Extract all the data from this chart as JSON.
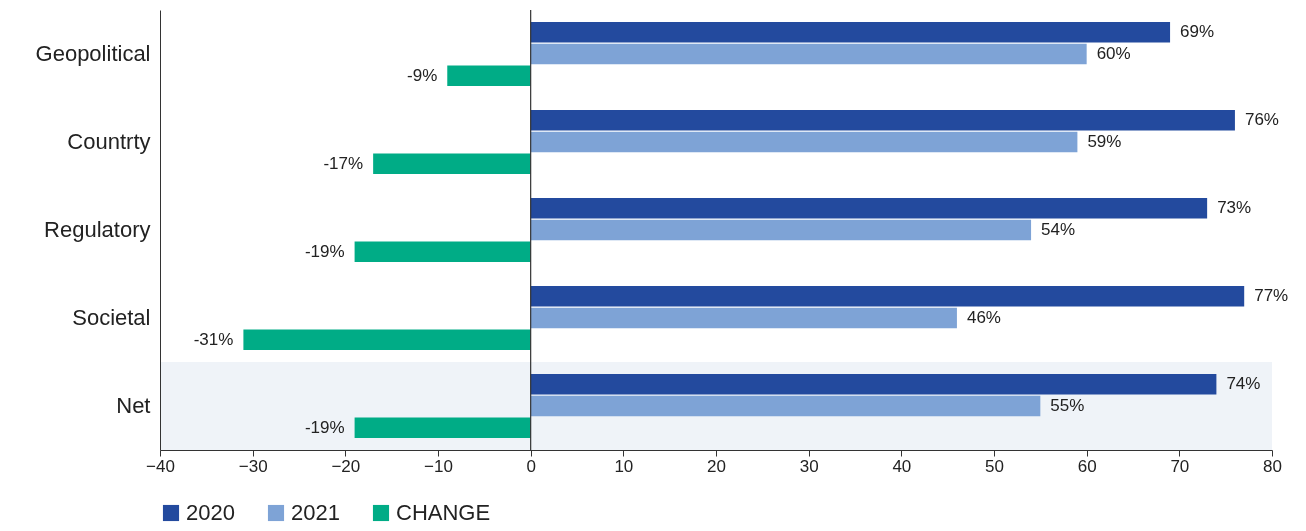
{
  "chart_data": {
    "type": "bar",
    "orientation": "horizontal",
    "categories": [
      "Geopolitical",
      "Countrty",
      "Regulatory",
      "Societal",
      "Net"
    ],
    "series": [
      {
        "name": "2020",
        "color": "#234a9e",
        "values": [
          69,
          76,
          73,
          77,
          74
        ],
        "value_labels": [
          "69%",
          "76%",
          "73%",
          "77%",
          "74%"
        ]
      },
      {
        "name": "2021",
        "color": "#7ea3d6",
        "values": [
          60,
          59,
          54,
          46,
          55
        ],
        "value_labels": [
          "60%",
          "59%",
          "54%",
          "46%",
          "55%"
        ]
      },
      {
        "name": "CHANGE",
        "color": "#00ac86",
        "values": [
          -9,
          -17,
          -19,
          -31,
          -19
        ],
        "value_labels": [
          "-9%",
          "-17%",
          "-19%",
          "-31%",
          "-19%"
        ]
      }
    ],
    "xlim": [
      -40,
      80
    ],
    "xticks": [
      -40,
      -30,
      -20,
      -10,
      0,
      10,
      20,
      30,
      40,
      50,
      60,
      70,
      80
    ],
    "ref_lines": [
      {
        "axis": "x",
        "value": 0,
        "color": "#333333"
      }
    ],
    "bands": [
      {
        "axis": "y",
        "from": "Net",
        "to": "Net",
        "color": "#eff3f8"
      }
    ],
    "grid": false,
    "legend": "bottom"
  }
}
